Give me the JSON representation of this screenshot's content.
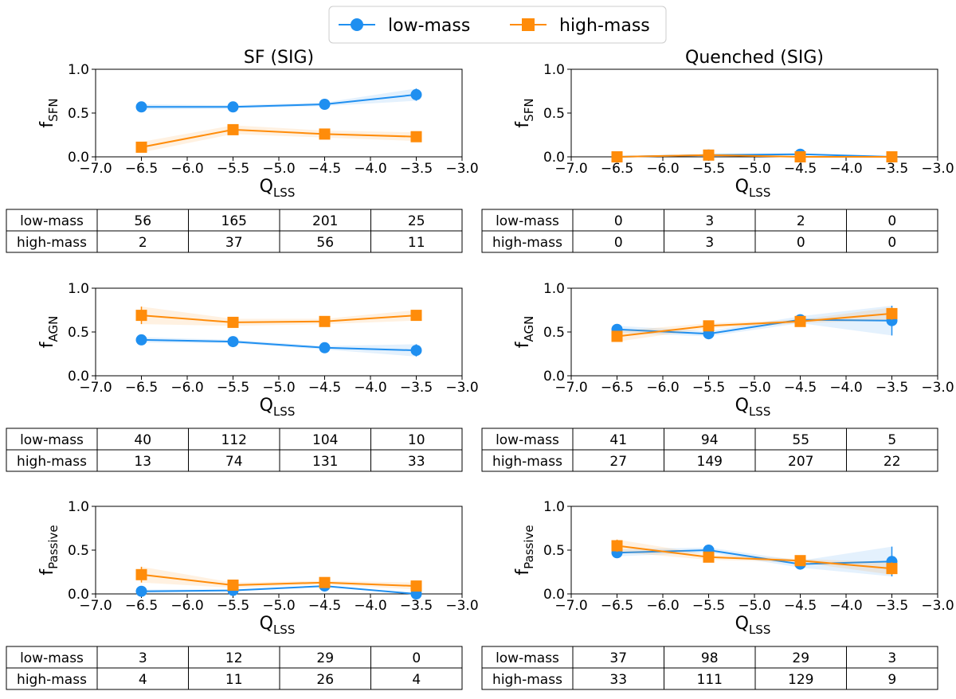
{
  "legend": {
    "entries": [
      {
        "label": "low-mass",
        "color": "#1f8ff0",
        "marker": "circle"
      },
      {
        "label": "high-mass",
        "color": "#ff8c0a",
        "marker": "square"
      }
    ]
  },
  "colors": {
    "low_mass": "#1f8ff0",
    "high_mass": "#ff8c0a"
  },
  "chart_data": [
    {
      "type": "line",
      "title": "SF (SIG)",
      "xlabel": "Q",
      "xlabel_sub": "LSS",
      "ylabel": "f",
      "ylabel_sub": "SFN",
      "xlim": [
        -7.0,
        -3.0
      ],
      "ylim": [
        0.0,
        1.0
      ],
      "xticks": [
        "−7.0",
        "−6.5",
        "−6.0",
        "−5.5",
        "−5.0",
        "−4.5",
        "−4.0",
        "−3.5",
        "−3.0"
      ],
      "yticks": [
        "0.0",
        "0.5",
        "1.0"
      ],
      "x": [
        -6.5,
        -5.5,
        -4.5,
        -3.5
      ],
      "series": [
        {
          "name": "low-mass",
          "values": [
            0.57,
            0.57,
            0.6,
            0.71
          ],
          "err": [
            0.03,
            0.02,
            0.02,
            0.07
          ]
        },
        {
          "name": "high-mass",
          "values": [
            0.11,
            0.31,
            0.26,
            0.23
          ],
          "err": [
            0.06,
            0.05,
            0.04,
            0.05
          ]
        }
      ],
      "table": {
        "rows": [
          {
            "label": "low-mass",
            "cells": [
              "56",
              "165",
              "201",
              "25"
            ]
          },
          {
            "label": "high-mass",
            "cells": [
              "2",
              "37",
              "56",
              "11"
            ]
          }
        ]
      }
    },
    {
      "type": "line",
      "title": "Quenched (SIG)",
      "xlabel": "Q",
      "xlabel_sub": "LSS",
      "ylabel": "f",
      "ylabel_sub": "SFN",
      "xlim": [
        -7.0,
        -3.0
      ],
      "ylim": [
        0.0,
        1.0
      ],
      "xticks": [
        "−7.0",
        "−6.5",
        "−6.0",
        "−5.5",
        "−5.0",
        "−4.5",
        "−4.0",
        "−3.5",
        "−3.0"
      ],
      "yticks": [
        "0.0",
        "0.5",
        "1.0"
      ],
      "x": [
        -6.5,
        -5.5,
        -4.5,
        -3.5
      ],
      "series": [
        {
          "name": "low-mass",
          "values": [
            0.0,
            0.02,
            0.03,
            0.0
          ],
          "err": [
            0.0,
            0.01,
            0.01,
            0.0
          ]
        },
        {
          "name": "high-mass",
          "values": [
            0.0,
            0.02,
            0.0,
            0.0
          ],
          "err": [
            0.0,
            0.01,
            0.0,
            0.0
          ]
        }
      ],
      "table": {
        "rows": [
          {
            "label": "low-mass",
            "cells": [
              "0",
              "3",
              "2",
              "0"
            ]
          },
          {
            "label": "high-mass",
            "cells": [
              "0",
              "3",
              "0",
              "0"
            ]
          }
        ]
      }
    },
    {
      "type": "line",
      "title": "",
      "xlabel": "Q",
      "xlabel_sub": "LSS",
      "ylabel": "f",
      "ylabel_sub": "AGN",
      "xlim": [
        -7.0,
        -3.0
      ],
      "ylim": [
        0.0,
        1.0
      ],
      "xticks": [
        "−7.0",
        "−6.5",
        "−6.0",
        "−5.5",
        "−5.0",
        "−4.5",
        "−4.0",
        "−3.5",
        "−3.0"
      ],
      "yticks": [
        "0.0",
        "0.5",
        "1.0"
      ],
      "x": [
        -6.5,
        -5.5,
        -4.5,
        -3.5
      ],
      "series": [
        {
          "name": "low-mass",
          "values": [
            0.41,
            0.39,
            0.32,
            0.29
          ],
          "err": [
            0.03,
            0.02,
            0.02,
            0.07
          ]
        },
        {
          "name": "high-mass",
          "values": [
            0.69,
            0.61,
            0.62,
            0.69
          ],
          "err": [
            0.1,
            0.04,
            0.03,
            0.06
          ]
        }
      ],
      "table": {
        "rows": [
          {
            "label": "low-mass",
            "cells": [
              "40",
              "112",
              "104",
              "10"
            ]
          },
          {
            "label": "high-mass",
            "cells": [
              "13",
              "74",
              "131",
              "33"
            ]
          }
        ]
      }
    },
    {
      "type": "line",
      "title": "",
      "xlabel": "Q",
      "xlabel_sub": "LSS",
      "ylabel": "f",
      "ylabel_sub": "AGN",
      "xlim": [
        -7.0,
        -3.0
      ],
      "ylim": [
        0.0,
        1.0
      ],
      "xticks": [
        "−7.0",
        "−6.5",
        "−6.0",
        "−5.5",
        "−5.0",
        "−4.5",
        "−4.0",
        "−3.5",
        "−3.0"
      ],
      "yticks": [
        "0.0",
        "0.5",
        "1.0"
      ],
      "x": [
        -6.5,
        -5.5,
        -4.5,
        -3.5
      ],
      "series": [
        {
          "name": "low-mass",
          "values": [
            0.53,
            0.48,
            0.64,
            0.63
          ],
          "err": [
            0.04,
            0.03,
            0.04,
            0.17
          ]
        },
        {
          "name": "high-mass",
          "values": [
            0.45,
            0.57,
            0.62,
            0.71
          ],
          "err": [
            0.06,
            0.03,
            0.02,
            0.07
          ]
        }
      ],
      "table": {
        "rows": [
          {
            "label": "low-mass",
            "cells": [
              "41",
              "94",
              "55",
              "5"
            ]
          },
          {
            "label": "high-mass",
            "cells": [
              "27",
              "149",
              "207",
              "22"
            ]
          }
        ]
      }
    },
    {
      "type": "line",
      "title": "",
      "xlabel": "Q",
      "xlabel_sub": "LSS",
      "ylabel": "f",
      "ylabel_sub": "Passive",
      "xlim": [
        -7.0,
        -3.0
      ],
      "ylim": [
        0.0,
        1.0
      ],
      "xticks": [
        "−7.0",
        "−6.5",
        "−6.0",
        "−5.5",
        "−5.0",
        "−4.5",
        "−4.0",
        "−3.5",
        "−3.0"
      ],
      "yticks": [
        "0.0",
        "0.5",
        "1.0"
      ],
      "x": [
        -6.5,
        -5.5,
        -4.5,
        -3.5
      ],
      "series": [
        {
          "name": "low-mass",
          "values": [
            0.03,
            0.04,
            0.09,
            0.0
          ],
          "err": [
            0.02,
            0.01,
            0.01,
            0.0
          ]
        },
        {
          "name": "high-mass",
          "values": [
            0.22,
            0.1,
            0.13,
            0.09
          ],
          "err": [
            0.09,
            0.03,
            0.02,
            0.04
          ]
        }
      ],
      "table": {
        "rows": [
          {
            "label": "low-mass",
            "cells": [
              "3",
              "12",
              "29",
              "0"
            ]
          },
          {
            "label": "high-mass",
            "cells": [
              "4",
              "11",
              "26",
              "4"
            ]
          }
        ]
      }
    },
    {
      "type": "line",
      "title": "",
      "xlabel": "Q",
      "xlabel_sub": "LSS",
      "ylabel": "f",
      "ylabel_sub": "Passive",
      "xlim": [
        -7.0,
        -3.0
      ],
      "ylim": [
        0.0,
        1.0
      ],
      "xticks": [
        "−7.0",
        "−6.5",
        "−6.0",
        "−5.5",
        "−5.0",
        "−4.5",
        "−4.0",
        "−3.5",
        "−3.0"
      ],
      "yticks": [
        "0.0",
        "0.5",
        "1.0"
      ],
      "x": [
        -6.5,
        -5.5,
        -4.5,
        -3.5
      ],
      "series": [
        {
          "name": "low-mass",
          "values": [
            0.47,
            0.5,
            0.34,
            0.37
          ],
          "err": [
            0.04,
            0.03,
            0.04,
            0.17
          ]
        },
        {
          "name": "high-mass",
          "values": [
            0.55,
            0.42,
            0.38,
            0.29
          ],
          "err": [
            0.07,
            0.03,
            0.02,
            0.07
          ]
        }
      ],
      "table": {
        "rows": [
          {
            "label": "low-mass",
            "cells": [
              "37",
              "98",
              "29",
              "3"
            ]
          },
          {
            "label": "high-mass",
            "cells": [
              "33",
              "111",
              "129",
              "9"
            ]
          }
        ]
      }
    }
  ]
}
